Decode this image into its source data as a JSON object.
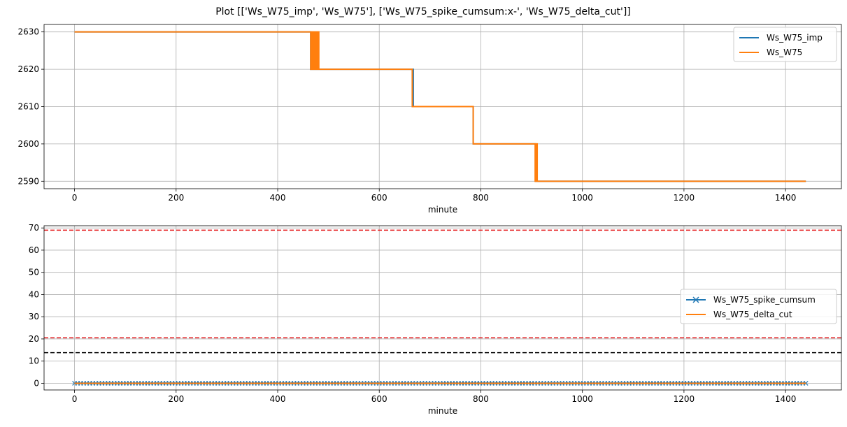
{
  "figure": {
    "title": "Plot [['Ws_W75_imp', 'Ws_W75'], ['Ws_W75_spike_cumsum:x-', 'Ws_W75_delta_cut']]"
  },
  "colors": {
    "blue": "#1f77b4",
    "orange": "#ff7f0e",
    "red": "#e41a1c",
    "black": "#000000",
    "grid": "#b0b0b0"
  },
  "chart_data": [
    {
      "type": "line",
      "xlabel": "minute",
      "ylabel": "",
      "xlim": [
        -60,
        1510
      ],
      "ylim": [
        2588,
        2632
      ],
      "xticks": [
        0,
        200,
        400,
        600,
        800,
        1000,
        1200,
        1400
      ],
      "yticks": [
        2590,
        2600,
        2610,
        2620,
        2630
      ],
      "grid": true,
      "legend": "top-right",
      "series": [
        {
          "name": "Ws_W75_imp",
          "color": "#1f77b4",
          "x": [
            0,
            465,
            465,
            667,
            667,
            785,
            785,
            908,
            908,
            1440
          ],
          "y": [
            2630,
            2630,
            2620,
            2620,
            2610,
            2610,
            2600,
            2600,
            2590,
            2590
          ]
        },
        {
          "name": "Ws_W75",
          "color": "#ff7f0e",
          "x": [
            0,
            465,
            465,
            467,
            467,
            469,
            469,
            471,
            471,
            473,
            473,
            475,
            475,
            477,
            477,
            479,
            479,
            481,
            481,
            665,
            665,
            667,
            667,
            785,
            785,
            907,
            907,
            909,
            909,
            911,
            911,
            1440
          ],
          "y": [
            2630,
            2630,
            2620,
            2620,
            2630,
            2630,
            2620,
            2620,
            2630,
            2630,
            2620,
            2620,
            2630,
            2630,
            2620,
            2620,
            2630,
            2630,
            2620,
            2620,
            2610,
            2610,
            2610,
            2610,
            2600,
            2600,
            2590,
            2590,
            2600,
            2600,
            2590,
            2590
          ]
        }
      ]
    },
    {
      "type": "line",
      "xlabel": "minute",
      "ylabel": "",
      "xlim": [
        -60,
        1510
      ],
      "ylim": [
        -3,
        71
      ],
      "xticks": [
        0,
        200,
        400,
        600,
        800,
        1000,
        1200,
        1400
      ],
      "yticks": [
        0,
        10,
        20,
        30,
        40,
        50,
        60,
        70
      ],
      "grid": true,
      "legend": "center-right",
      "series": [
        {
          "name": "Ws_W75_spike_cumsum",
          "style": "x-",
          "color": "#1f77b4",
          "x": [
            0,
            1440
          ],
          "y": [
            0,
            0
          ]
        },
        {
          "name": "Ws_W75_delta_cut",
          "color": "#ff7f0e",
          "x": [
            0,
            1440
          ],
          "y": [
            0,
            0
          ]
        }
      ],
      "hlines": [
        {
          "y": 69,
          "color": "#e41a1c",
          "style": "dashed"
        },
        {
          "y": 20.5,
          "color": "#e41a1c",
          "style": "dashed"
        },
        {
          "y": 13.8,
          "color": "#000000",
          "style": "dashed"
        }
      ]
    }
  ]
}
